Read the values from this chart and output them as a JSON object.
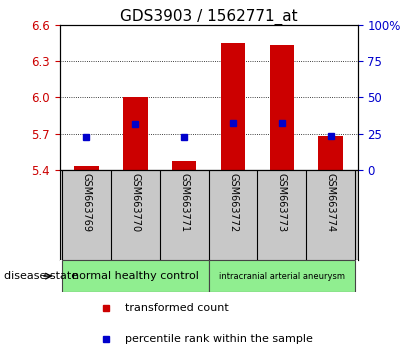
{
  "title": "GDS3903 / 1562771_at",
  "samples": [
    "GSM663769",
    "GSM663770",
    "GSM663771",
    "GSM663772",
    "GSM663773",
    "GSM663774"
  ],
  "bar_base": 5.4,
  "bar_tops": [
    5.43,
    6.0,
    5.47,
    6.45,
    6.43,
    5.68
  ],
  "percentile_values": [
    5.67,
    5.78,
    5.67,
    5.79,
    5.79,
    5.68
  ],
  "ylim_left": [
    5.4,
    6.6
  ],
  "ylim_right": [
    0,
    100
  ],
  "yticks_left": [
    5.4,
    5.7,
    6.0,
    6.3,
    6.6
  ],
  "yticks_right": [
    0,
    25,
    50,
    75,
    100
  ],
  "ytick_labels_right": [
    "0",
    "25",
    "50",
    "75",
    "100%"
  ],
  "grid_values": [
    5.7,
    6.0,
    6.3
  ],
  "bar_color": "#cc0000",
  "blue_color": "#0000cc",
  "group_colors": [
    "#90EE90",
    "#90EE90"
  ],
  "group_labels": [
    "normal healthy control",
    "intracranial arterial aneurysm"
  ],
  "group_ranges": [
    [
      0,
      3
    ],
    [
      3,
      6
    ]
  ],
  "disease_state_label": "disease state",
  "legend_red_label": "transformed count",
  "legend_blue_label": "percentile rank within the sample",
  "bar_width": 0.5,
  "sample_label_bg": "#c8c8c8",
  "title_fontsize": 11,
  "tick_fontsize": 8.5,
  "label_fontsize": 8.5
}
